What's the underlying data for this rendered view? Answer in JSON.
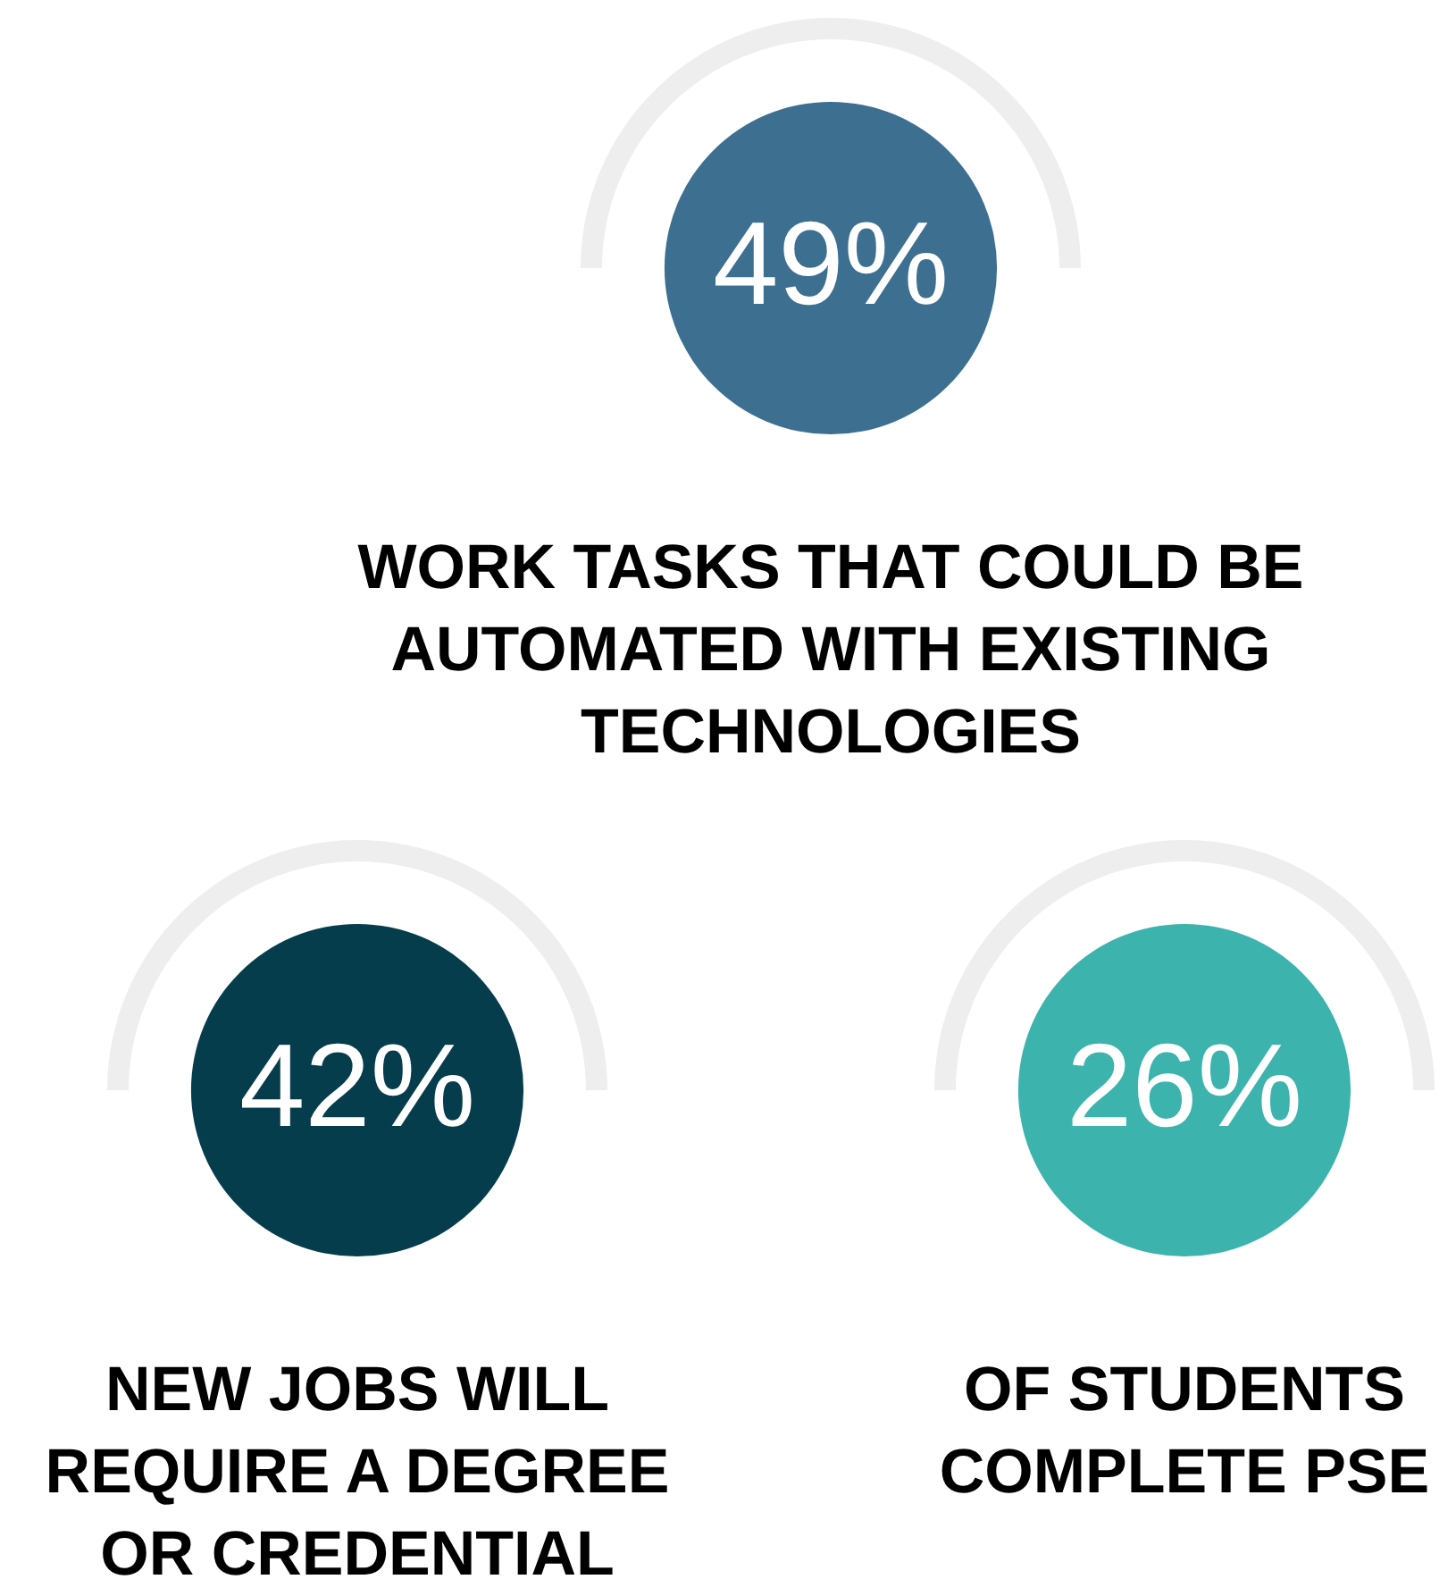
{
  "chart_data": {
    "type": "other",
    "categories": [
      "WORK TASKS THAT COULD BE AUTOMATED WITH EXISTING TECHNOLOGIES",
      "NEW JOBS WILL REQUIRE A DEGREE OR CREDENTIAL",
      "OF STUDENTS COMPLETE PSE"
    ],
    "values": [
      49,
      42,
      26
    ],
    "value_labels": [
      "49%",
      "42%",
      "26%"
    ],
    "colors": [
      "#3d6f91",
      "#053d4d",
      "#3db3ae"
    ]
  }
}
